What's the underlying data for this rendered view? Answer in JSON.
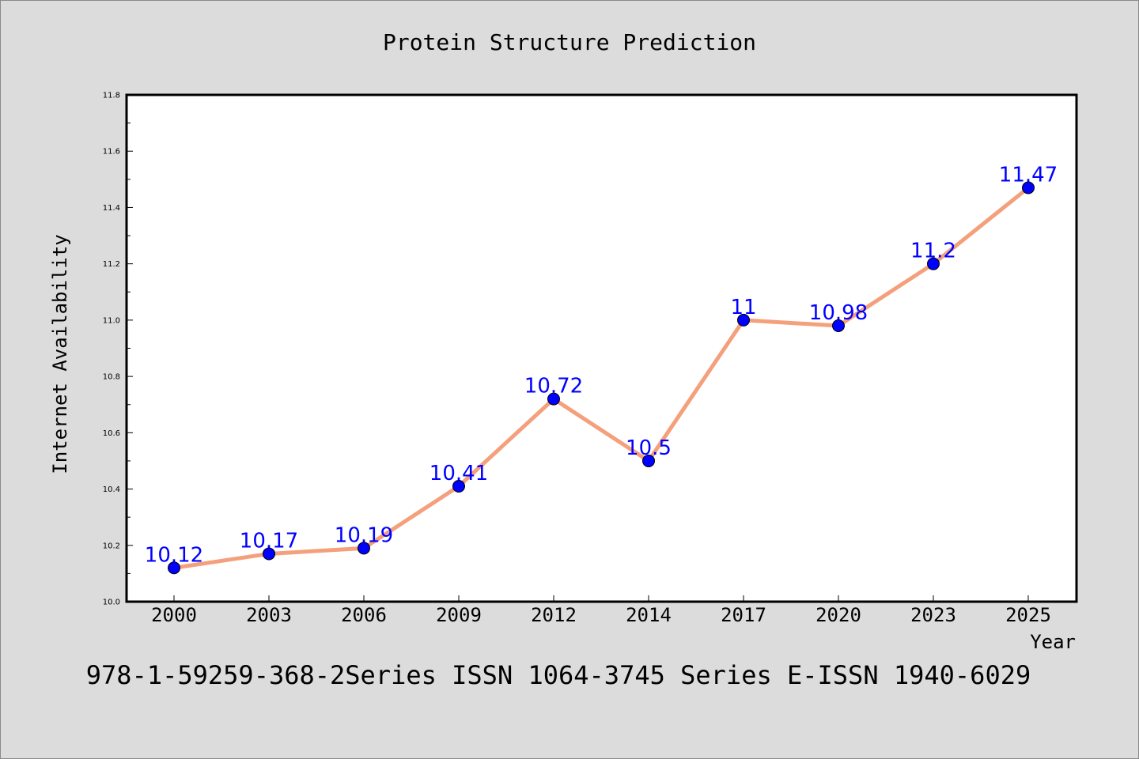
{
  "chart_data": {
    "type": "line",
    "title": "Protein Structure Prediction",
    "xlabel": "Year",
    "ylabel": "Internet Availability",
    "categories": [
      "2000",
      "2003",
      "2006",
      "2009",
      "2012",
      "2014",
      "2017",
      "2020",
      "2023",
      "2025"
    ],
    "series": [
      {
        "values": [
          10.12,
          10.17,
          10.19,
          10.41,
          10.72,
          10.5,
          11,
          10.98,
          11.2,
          11.47
        ],
        "data_labels": [
          "10.12",
          "10.17",
          "10.19",
          "10.41",
          "10.72",
          "10.5",
          "11",
          "10.98",
          "11.2",
          "11.47"
        ]
      }
    ],
    "ylim": [
      10.0,
      11.8
    ],
    "yticks": [
      "10.0",
      "10.2",
      "10.4",
      "10.6",
      "10.8",
      "11.0",
      "11.2",
      "11.4",
      "11.6",
      "11.8"
    ],
    "grid": false,
    "legend": "none",
    "colors": {
      "line": "#f4a07c",
      "marker": "#0000ff",
      "labels": "#0000ff",
      "background": "#dcdcdc",
      "plot_bg": "#ffffff"
    }
  },
  "footer": "978-1-59259-368-2Series ISSN 1064-3745 Series E-ISSN 1940-6029"
}
